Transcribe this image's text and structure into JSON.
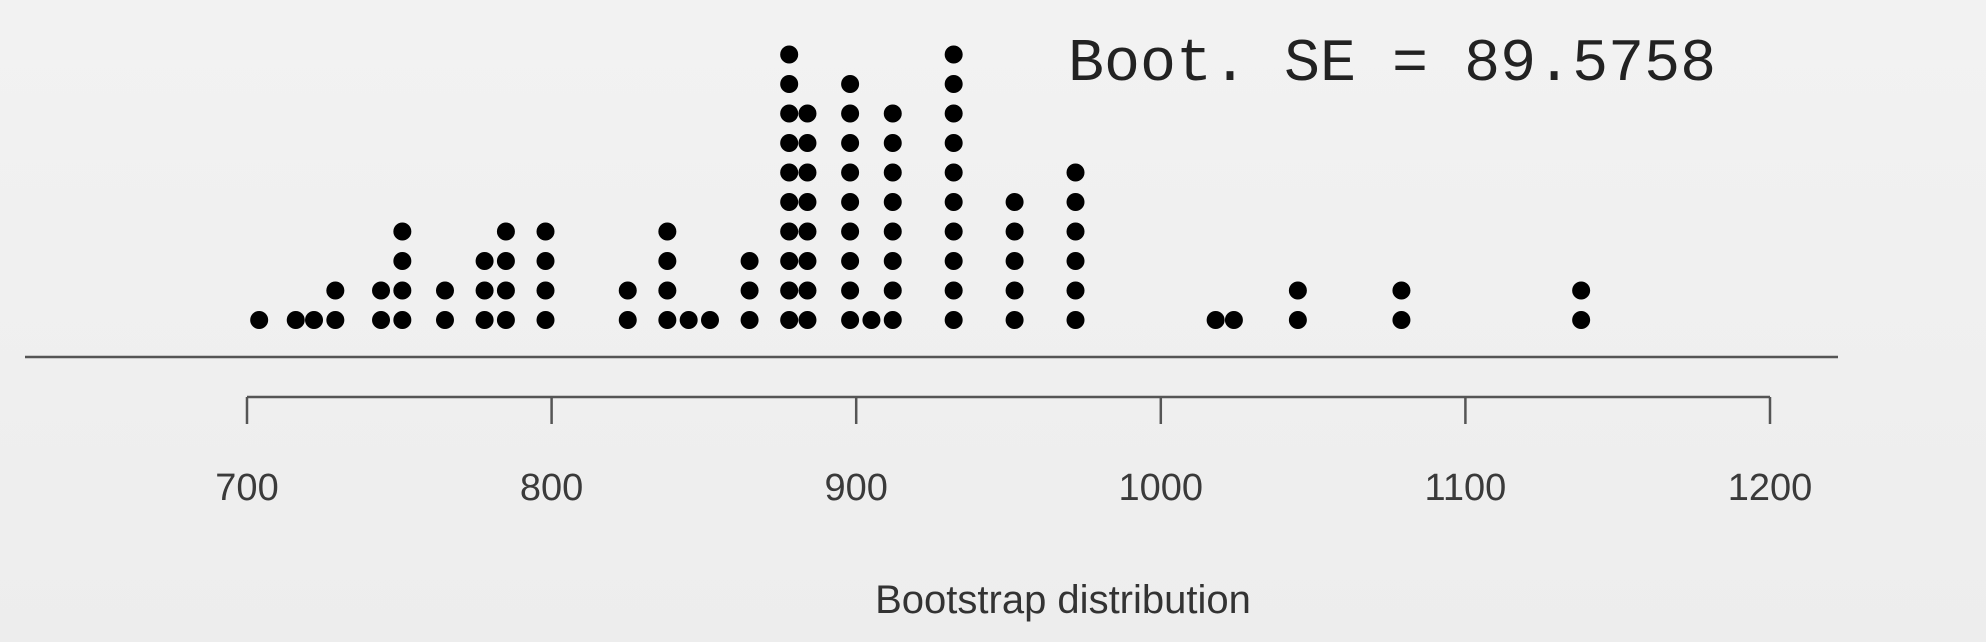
{
  "chart_data": {
    "type": "scatter",
    "subtype": "dot-plot",
    "xlabel": "Bootstrap distribution",
    "annotation": "Boot. SE = 89.5758",
    "xlim": [
      700,
      1200
    ],
    "xticks": [
      700,
      800,
      900,
      1000,
      1100,
      1200
    ],
    "tick_labels": [
      "700",
      "800",
      "900",
      "1000",
      "1100",
      "1200"
    ],
    "grid": false,
    "dot_color": "#000000",
    "stacks": [
      {
        "x": 704,
        "count": 1
      },
      {
        "x": 716,
        "count": 1
      },
      {
        "x": 722,
        "count": 1
      },
      {
        "x": 729,
        "count": 2
      },
      {
        "x": 744,
        "count": 2
      },
      {
        "x": 751,
        "count": 4
      },
      {
        "x": 765,
        "count": 2
      },
      {
        "x": 778,
        "count": 3
      },
      {
        "x": 785,
        "count": 4
      },
      {
        "x": 798,
        "count": 4
      },
      {
        "x": 825,
        "count": 2
      },
      {
        "x": 838,
        "count": 4
      },
      {
        "x": 845,
        "count": 1
      },
      {
        "x": 852,
        "count": 1
      },
      {
        "x": 865,
        "count": 3
      },
      {
        "x": 878,
        "count": 10
      },
      {
        "x": 884,
        "count": 8
      },
      {
        "x": 898,
        "count": 9
      },
      {
        "x": 905,
        "count": 1
      },
      {
        "x": 912,
        "count": 8
      },
      {
        "x": 932,
        "count": 10
      },
      {
        "x": 952,
        "count": 5
      },
      {
        "x": 972,
        "count": 6
      },
      {
        "x": 1018,
        "count": 1
      },
      {
        "x": 1024,
        "count": 1
      },
      {
        "x": 1045,
        "count": 2
      },
      {
        "x": 1079,
        "count": 2
      },
      {
        "x": 1138,
        "count": 2
      }
    ]
  }
}
